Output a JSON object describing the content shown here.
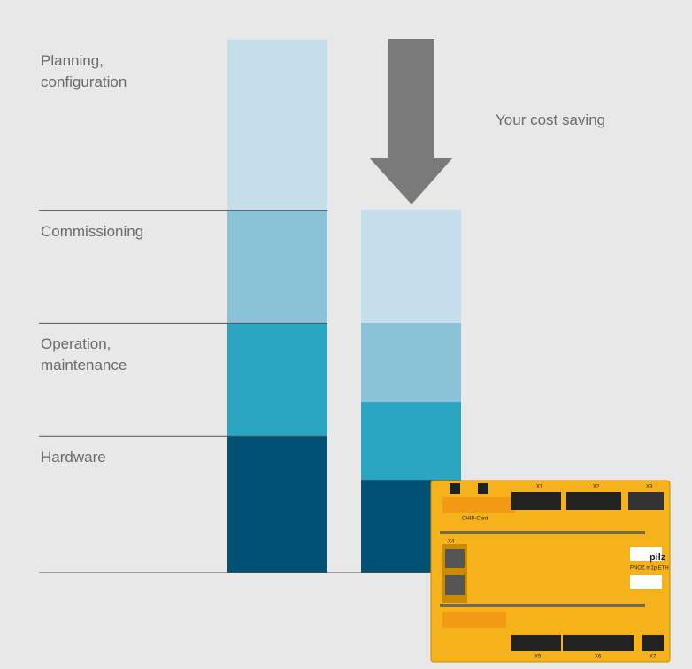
{
  "chart_data": {
    "type": "stacked_bar",
    "categories": [
      null,
      null
    ],
    "ylim": [
      0,
      100
    ],
    "series": [
      {
        "name": "Hardware",
        "color": "#005174",
        "values": [
          25.5,
          17.4
        ]
      },
      {
        "name": "Operation, maintenance",
        "color": "#2aa5c2",
        "values": [
          21.2,
          14.6
        ]
      },
      {
        "name": "Commissioning",
        "color": "#8ac3d8",
        "values": [
          21.2,
          14.8
        ]
      },
      {
        "name": "Planning, configuration",
        "color": "#c4dfea",
        "values": [
          32.0,
          21.2
        ]
      }
    ],
    "annotation": "Your cost saving"
  },
  "device": {
    "labels": [
      "CHIP-Card",
      "X1",
      "X2",
      "X3",
      "X4",
      "X5",
      "X6",
      "X7",
      "PNOZ m1p ETH",
      "pilz"
    ]
  }
}
